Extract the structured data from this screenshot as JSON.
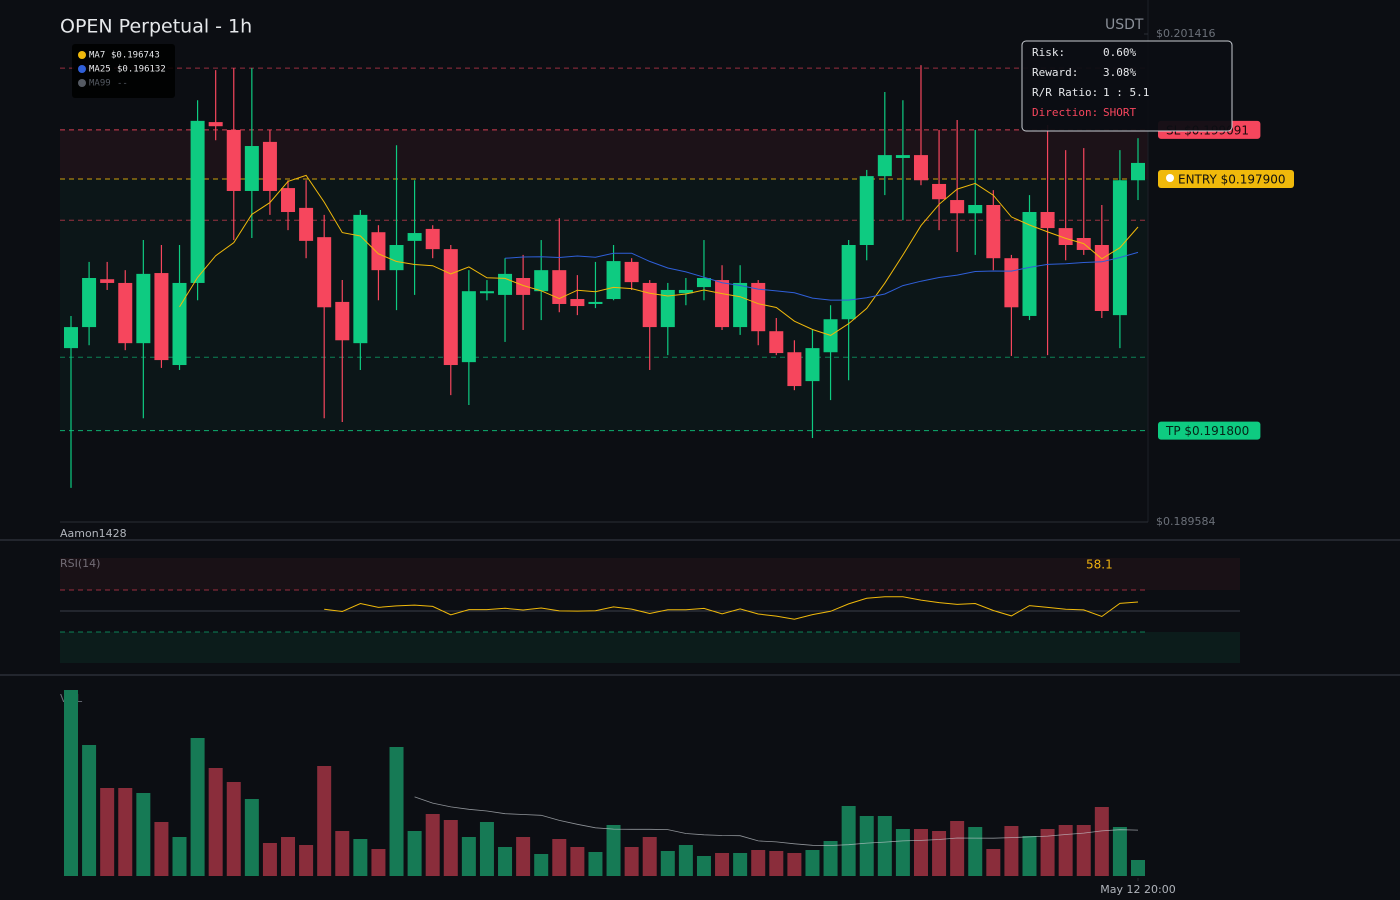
{
  "chart_data": {
    "type": "candlestick",
    "title": "OPEN Perpetual - 1h",
    "currency": "USDT",
    "watermark": "Aamon1428",
    "yticks": [
      {
        "value": 0.201416,
        "label": "$0.201416"
      },
      {
        "value": 0.189584,
        "label": "$0.189584"
      }
    ],
    "ylim": [
      0.189584,
      0.201416
    ],
    "legend": [
      {
        "name": "MA7",
        "value_label": "$0.196743",
        "color": "#f0b90b"
      },
      {
        "name": "MA25",
        "value_label": "$0.196132",
        "color": "#2f5fd8"
      },
      {
        "name": "MA99",
        "value_label": "--",
        "color": "#555a63"
      }
    ],
    "sl": {
      "value": 0.199091,
      "label": "SL $0.199091"
    },
    "entry": {
      "value": 0.1979,
      "label": "ENTRY $0.197900"
    },
    "tp": {
      "value": 0.1918,
      "label": "TP $0.191800"
    },
    "levels": [
      {
        "value": 0.20059,
        "color": "#f6465d"
      },
      {
        "value": 0.1969,
        "color": "#f6465d"
      },
      {
        "value": 0.19358,
        "color": "#0ecb81"
      }
    ],
    "risk_box": [
      [
        "Risk:",
        "0.60%"
      ],
      [
        "Reward:",
        "3.08%"
      ],
      [
        "R/R Ratio:",
        "1 : 5.1"
      ],
      [
        "Direction:",
        "SHORT"
      ]
    ],
    "up_color": "#0ecb81",
    "down_color": "#f6465d",
    "open": [
      0.1938,
      0.19431,
      0.19547,
      0.19538,
      0.19392,
      0.19562,
      0.19339,
      0.19538,
      0.19928,
      0.19909,
      0.19761,
      0.1988,
      0.19768,
      0.1972,
      0.19649,
      0.19492,
      0.19392,
      0.19661,
      0.19569,
      0.1964,
      0.19669,
      0.1962,
      0.19346,
      0.19513,
      0.19509,
      0.1955,
      0.19518,
      0.19569,
      0.19499,
      0.19487,
      0.19499,
      0.19589,
      0.19538,
      0.19431,
      0.19513,
      0.19528,
      0.19545,
      0.19431,
      0.19538,
      0.19421,
      0.1937,
      0.193,
      0.1937,
      0.1945,
      0.1963,
      0.19797,
      0.19841,
      0.19848,
      0.19778,
      0.19739,
      0.19707,
      0.19727,
      0.19598,
      0.19458,
      0.1971,
      0.19671,
      0.19647,
      0.1963,
      0.1946,
      0.19787
    ],
    "high": [
      0.19458,
      0.19589,
      0.19589,
      0.19569,
      0.19642,
      0.1963,
      0.1963,
      0.19981,
      0.20054,
      0.20059,
      0.20059,
      0.19909,
      0.19787,
      0.19787,
      0.19703,
      0.19545,
      0.19715,
      0.19678,
      0.19872,
      0.19787,
      0.19678,
      0.1963,
      0.19569,
      0.19545,
      0.19598,
      0.19606,
      0.19642,
      0.19695,
      0.19557,
      0.19589,
      0.1963,
      0.19598,
      0.19545,
      0.19538,
      0.1955,
      0.19642,
      0.19581,
      0.19581,
      0.19545,
      0.19453,
      0.19399,
      0.19424,
      0.19484,
      0.19642,
      0.19812,
      0.20001,
      0.19981,
      0.20066,
      0.19909,
      0.19933,
      0.19909,
      0.19763,
      0.19606,
      0.19751,
      0.19921,
      0.1986,
      0.19865,
      0.19727,
      0.1986,
      0.19889
    ],
    "low": [
      0.19041,
      0.19387,
      0.19521,
      0.19375,
      0.1921,
      0.19332,
      0.19327,
      0.19496,
      0.19884,
      0.19642,
      0.19647,
      0.19703,
      0.19666,
      0.19598,
      0.1921,
      0.19201,
      0.19327,
      0.19496,
      0.19472,
      0.19509,
      0.19598,
      0.19266,
      0.19242,
      0.19496,
      0.19395,
      0.19424,
      0.19448,
      0.19467,
      0.1946,
      0.19477,
      0.19496,
      0.19521,
      0.19327,
      0.19363,
      0.19484,
      0.19496,
      0.19424,
      0.19412,
      0.19387,
      0.19363,
      0.19278,
      0.19162,
      0.19254,
      0.19302,
      0.19593,
      0.19751,
      0.1969,
      0.19775,
      0.19666,
      0.19613,
      0.19606,
      0.19569,
      0.19361,
      0.19448,
      0.19363,
      0.19593,
      0.19606,
      0.19453,
      0.1938,
      0.19739
    ],
    "close": [
      0.19431,
      0.1955,
      0.19538,
      0.19392,
      0.1956,
      0.19351,
      0.19538,
      0.19931,
      0.19918,
      0.19761,
      0.1987,
      0.19761,
      0.1971,
      0.1964,
      0.19479,
      0.19399,
      0.19703,
      0.19569,
      0.1963,
      0.19659,
      0.1962,
      0.19339,
      0.19518,
      0.19518,
      0.1956,
      0.19509,
      0.19569,
      0.19487,
      0.19482,
      0.19492,
      0.19591,
      0.1954,
      0.19431,
      0.19521,
      0.19521,
      0.1955,
      0.19431,
      0.19538,
      0.19421,
      0.19368,
      0.19288,
      0.1938,
      0.1945,
      0.1963,
      0.19797,
      0.19848,
      0.19848,
      0.19787,
      0.19741,
      0.19707,
      0.19727,
      0.19598,
      0.19479,
      0.1971,
      0.19671,
      0.1963,
      0.19618,
      0.1947,
      0.19787,
      0.19829
    ],
    "volume": [
      186,
      131,
      88,
      88,
      83,
      54,
      39,
      138,
      108,
      94,
      77,
      33,
      39,
      31,
      110,
      45,
      37,
      27,
      129,
      45,
      62,
      56,
      39,
      54,
      29,
      39,
      22,
      37,
      29,
      24,
      51,
      29,
      39,
      25,
      31,
      20,
      23,
      23,
      26,
      25,
      23,
      26,
      35,
      70,
      60,
      60,
      47,
      47,
      45,
      55,
      49,
      27,
      50,
      40,
      47,
      51,
      51,
      69,
      49,
      16
    ],
    "rsi_label": "RSI(14)",
    "rsi_value": "58.1",
    "volume_label": "VOL",
    "xticks": [
      {
        "value": 59,
        "label": "May 12 20:00"
      }
    ]
  }
}
